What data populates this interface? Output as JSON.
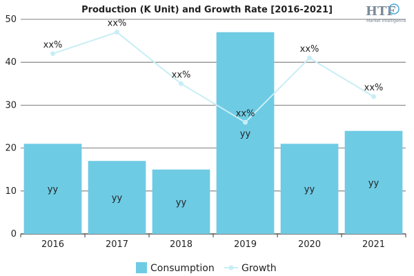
{
  "chart_data": {
    "type": "bar",
    "title": "Production (K Unit) and Growth Rate [2016-2021]",
    "categories": [
      "2016",
      "2017",
      "2018",
      "2019",
      "2020",
      "2021"
    ],
    "ylim": [
      0,
      50
    ],
    "yticks": [
      "0",
      "10",
      "20",
      "30",
      "40",
      "50"
    ],
    "grid": true,
    "legend_position": "bottom",
    "series": [
      {
        "name": "Consumption",
        "type": "bar",
        "color": "#6ecbe4",
        "values": [
          21,
          17,
          15,
          47,
          21,
          24
        ],
        "labels": [
          "yy",
          "yy",
          "yy",
          "yy",
          "yy",
          "yy"
        ]
      },
      {
        "name": "Growth",
        "type": "line",
        "color": "#c8eef5",
        "values": [
          42,
          47,
          35,
          26,
          41,
          32
        ],
        "labels": [
          "xx%",
          "xx%",
          "xx%",
          "xx%",
          "xx%",
          "xx%"
        ]
      }
    ]
  },
  "logo": {
    "text": "HTF",
    "subtext": "Market Intelligence"
  }
}
